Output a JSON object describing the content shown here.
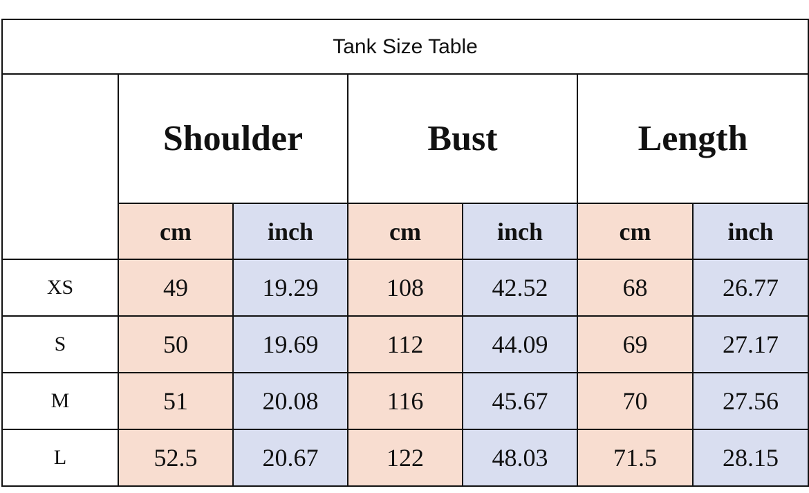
{
  "title": "Tank Size Table",
  "colors": {
    "cm_bg": "#f8ddd0",
    "inch_bg": "#d9def0",
    "border": "#111111"
  },
  "groups": [
    "Shoulder",
    "Bust",
    "Length"
  ],
  "units": [
    "cm",
    "inch",
    "cm",
    "inch",
    "cm",
    "inch"
  ],
  "rows": [
    {
      "size": "XS",
      "values": [
        "49",
        "19.29",
        "108",
        "42.52",
        "68",
        "26.77"
      ]
    },
    {
      "size": "S",
      "values": [
        "50",
        "19.69",
        "112",
        "44.09",
        "69",
        "27.17"
      ]
    },
    {
      "size": "M",
      "values": [
        "51",
        "20.08",
        "116",
        "45.67",
        "70",
        "27.56"
      ]
    },
    {
      "size": "L",
      "values": [
        "52.5",
        "20.67",
        "122",
        "48.03",
        "71.5",
        "28.15"
      ]
    }
  ]
}
